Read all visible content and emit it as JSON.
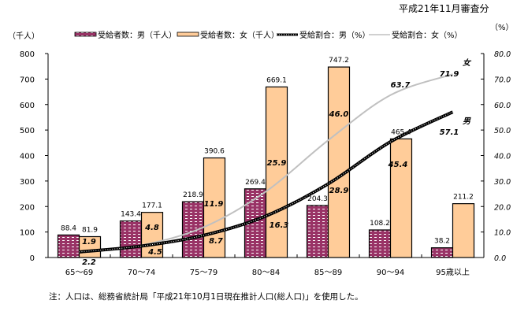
{
  "subtitle": "平成21年11月審査分",
  "footnote": "注：人口は、総務省統計局「平成21年10月1日現在推計人口(総人口)」を使用した。",
  "chart_data": {
    "type": "bar+line",
    "left_axis_label": "（千人）",
    "right_axis_label": "（%）",
    "categories": [
      "65～69",
      "70～74",
      "75～79",
      "80～84",
      "85～89",
      "90～94",
      "95歳以上"
    ],
    "ylim_left": [
      0,
      800
    ],
    "yticks_left": [
      "0",
      "100",
      "200",
      "300",
      "400",
      "500",
      "600",
      "700",
      "800"
    ],
    "ylim_right": [
      0,
      80
    ],
    "yticks_right": [
      "0.0",
      "10.0",
      "20.0",
      "30.0",
      "40.0",
      "50.0",
      "60.0",
      "70.0",
      "80.0"
    ],
    "series": [
      {
        "name": "受給者数：男（千人）",
        "kind": "bar",
        "axis": "left",
        "values": [
          88.4,
          143.4,
          218.9,
          269.4,
          204.3,
          108.2,
          38.2
        ],
        "labels": [
          "88.4",
          "143.4",
          "218.9",
          "269.4",
          "204.3",
          "108.2",
          "38.2"
        ],
        "color": "#993366"
      },
      {
        "name": "受給者数：女（千人）",
        "kind": "bar",
        "axis": "left",
        "values": [
          81.9,
          177.1,
          390.6,
          669.1,
          747.2,
          465.4,
          211.2
        ],
        "labels": [
          "81.9",
          "177.1",
          "390.6",
          "669.1",
          "747.2",
          "465.4",
          "211.2"
        ],
        "color": "#FFCC99"
      },
      {
        "name": "受給割合：男（%）",
        "kind": "line",
        "axis": "right",
        "values": [
          2.2,
          4.5,
          8.7,
          16.3,
          28.9,
          45.4,
          57.1
        ],
        "labels": [
          "2.2",
          "4.5",
          "8.7",
          "16.3",
          "28.9",
          "45.4",
          "57.1"
        ],
        "color": "#000000",
        "end_label": "男"
      },
      {
        "name": "受給割合：女（%）",
        "kind": "line",
        "axis": "right",
        "values": [
          1.9,
          4.8,
          11.9,
          25.9,
          46.0,
          63.7,
          71.9
        ],
        "labels": [
          "1.9",
          "4.8",
          "11.9",
          "25.9",
          "46.0",
          "63.7",
          "71.9"
        ],
        "color": "#C0C0C0",
        "end_label": "女"
      }
    ],
    "legend_position": "top",
    "grid": false
  }
}
